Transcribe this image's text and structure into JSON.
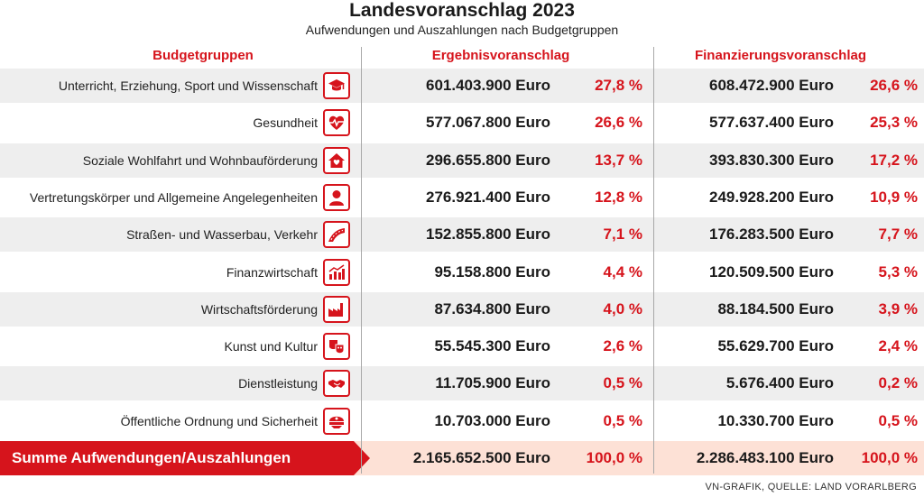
{
  "header": {
    "title": "Landesvoranschlag 2023",
    "subtitle": "Aufwendungen und Auszahlungen nach Budgetgruppen"
  },
  "columns": {
    "categories": "Budgetgruppen",
    "ergebnis": "Ergebnisvoranschlag",
    "finanzierung": "Finanzierungsvoranschlag"
  },
  "colors": {
    "accent": "#d6141c",
    "row_alt": "#eeeeee",
    "sum_bg": "#fde1d6"
  },
  "chart_data": {
    "type": "table",
    "title": "Landesvoranschlag 2023",
    "subtitle": "Aufwendungen und Auszahlungen nach Budgetgruppen",
    "rows": [
      {
        "category": "Unterricht, Erziehung, Sport und Wissenschaft",
        "icon": "graduation-cap-icon",
        "ergebnis": "601.403.900 Euro",
        "ergebnis_pct": "27,8 %",
        "finanzierung": "608.472.900 Euro",
        "finanzierung_pct": "26,6 %"
      },
      {
        "category": "Gesundheit",
        "icon": "heart-pulse-icon",
        "ergebnis": "577.067.800 Euro",
        "ergebnis_pct": "26,6 %",
        "finanzierung": "577.637.400 Euro",
        "finanzierung_pct": "25,3 %"
      },
      {
        "category": "Soziale Wohlfahrt und Wohnbauförderung",
        "icon": "house-heart-icon",
        "ergebnis": "296.655.800 Euro",
        "ergebnis_pct": "13,7 %",
        "finanzierung": "393.830.300 Euro",
        "finanzierung_pct": "17,2 %"
      },
      {
        "category": "Vertretungskörper und Allgemeine Angelegenheiten",
        "icon": "person-icon",
        "ergebnis": "276.921.400 Euro",
        "ergebnis_pct": "12,8 %",
        "finanzierung": "249.928.200 Euro",
        "finanzierung_pct": "10,9 %"
      },
      {
        "category": "Straßen- und Wasserbau, Verkehr",
        "icon": "road-icon",
        "ergebnis": "152.855.800 Euro",
        "ergebnis_pct": "7,1 %",
        "finanzierung": "176.283.500 Euro",
        "finanzierung_pct": "7,7 %"
      },
      {
        "category": "Finanzwirtschaft",
        "icon": "chart-growth-icon",
        "ergebnis": "95.158.800 Euro",
        "ergebnis_pct": "4,4 %",
        "finanzierung": "120.509.500 Euro",
        "finanzierung_pct": "5,3 %"
      },
      {
        "category": "Wirtschaftsförderung",
        "icon": "factory-icon",
        "ergebnis": "87.634.800 Euro",
        "ergebnis_pct": "4,0 %",
        "finanzierung": "88.184.500 Euro",
        "finanzierung_pct": "3,9 %"
      },
      {
        "category": "Kunst und Kultur",
        "icon": "theater-masks-icon",
        "ergebnis": "55.545.300 Euro",
        "ergebnis_pct": "2,6 %",
        "finanzierung": "55.629.700 Euro",
        "finanzierung_pct": "2,4 %"
      },
      {
        "category": "Dienstleistung",
        "icon": "handshake-icon",
        "ergebnis": "11.705.900 Euro",
        "ergebnis_pct": "0,5 %",
        "finanzierung": "5.676.400 Euro",
        "finanzierung_pct": "0,2 %"
      },
      {
        "category": "Öffentliche Ordnung und Sicherheit",
        "icon": "police-cap-icon",
        "ergebnis": "10.703.000 Euro",
        "ergebnis_pct": "0,5 %",
        "finanzierung": "10.330.700 Euro",
        "finanzierung_pct": "0,5 %"
      }
    ],
    "total": {
      "label": "Summe Aufwendungen/Auszahlungen",
      "ergebnis": "2.165.652.500 Euro",
      "ergebnis_pct": "100,0 %",
      "finanzierung": "2.286.483.100 Euro",
      "finanzierung_pct": "100,0 %"
    }
  },
  "footer": {
    "source": "VN-GRAFIK, QUELLE: LAND VORARLBERG"
  }
}
